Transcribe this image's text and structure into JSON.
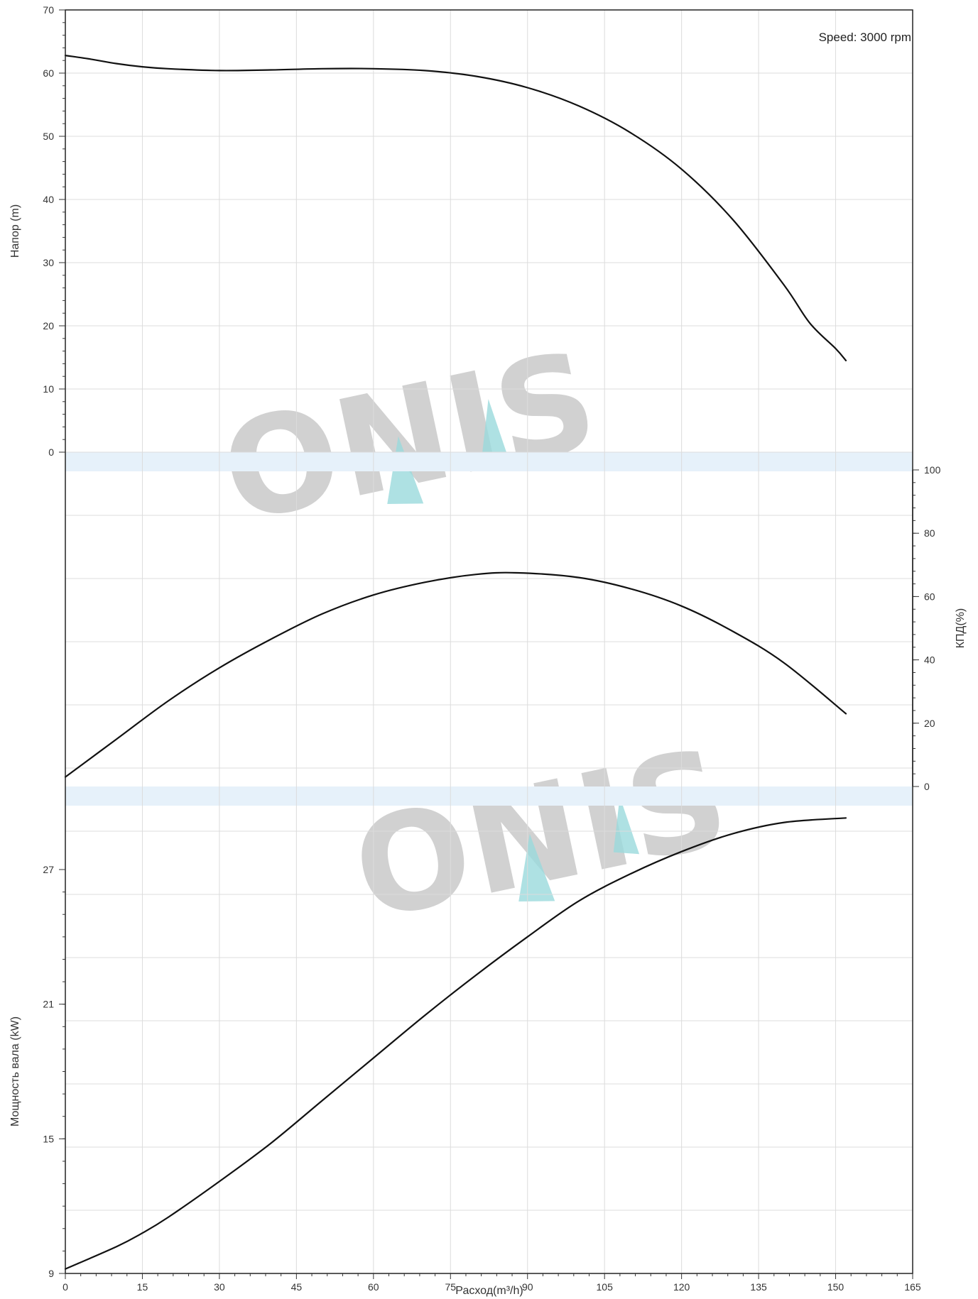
{
  "chart_data": {
    "type": "line",
    "speed_label": "Speed: 3000 rpm",
    "watermark": "ONIS",
    "colors": {
      "curve": "#111111",
      "grid": "#dcdcdc",
      "band": "#e6f1fa",
      "watermark": "#c9c9c9",
      "watermark_accent": "#9ad9dc"
    },
    "x_axis": {
      "label": "Расход(m³/h)",
      "range": [
        0,
        165
      ],
      "ticks": [
        0,
        15,
        30,
        45,
        60,
        75,
        90,
        105,
        120,
        135,
        150,
        165
      ]
    },
    "panels": [
      {
        "id": "head",
        "ylabel": "Напор (m)",
        "axis_side": "left",
        "range": [
          0,
          70
        ],
        "ticks": [
          0,
          10,
          20,
          30,
          40,
          50,
          60,
          70
        ],
        "series": [
          {
            "x": [
              0,
              5,
              10,
              15,
              20,
              30,
              40,
              50,
              60,
              70,
              80,
              90,
              100,
              110,
              120,
              130,
              140,
              145,
              150,
              152
            ],
            "y": [
              62.8,
              62.2,
              61.5,
              61.0,
              60.7,
              60.4,
              60.5,
              60.7,
              60.7,
              60.4,
              59.5,
              57.7,
              54.8,
              50.6,
              44.8,
              36.8,
              26.4,
              20.4,
              16.4,
              14.5
            ]
          }
        ]
      },
      {
        "id": "efficiency",
        "ylabel": "КПД(%)",
        "axis_side": "right",
        "range": [
          0,
          100
        ],
        "ticks": [
          0,
          20,
          40,
          60,
          80,
          100
        ],
        "series": [
          {
            "x": [
              0,
              10,
              20,
              30,
              40,
              50,
              60,
              70,
              80,
              88,
              100,
              110,
              120,
              130,
              140,
              152
            ],
            "y": [
              3,
              15,
              27,
              37.5,
              46.5,
              54.5,
              60.5,
              64.5,
              67,
              67.5,
              66,
              62.5,
              57,
              49,
              39,
              23
            ]
          }
        ]
      },
      {
        "id": "power",
        "ylabel": "Мощность вала (kW)",
        "axis_side": "left",
        "range": [
          9,
          27
        ],
        "ticks": [
          9,
          15,
          21,
          27
        ],
        "series": [
          {
            "x": [
              0,
              10,
              15,
              20,
              30,
              40,
              50,
              60,
              70,
              80,
              90,
              100,
              110,
              120,
              130,
              140,
              152
            ],
            "y": [
              9.2,
              10.2,
              10.8,
              11.5,
              13.1,
              14.8,
              16.7,
              18.6,
              20.5,
              22.3,
              24.0,
              25.6,
              26.8,
              27.8,
              28.6,
              29.1,
              29.3
            ]
          }
        ]
      }
    ]
  }
}
